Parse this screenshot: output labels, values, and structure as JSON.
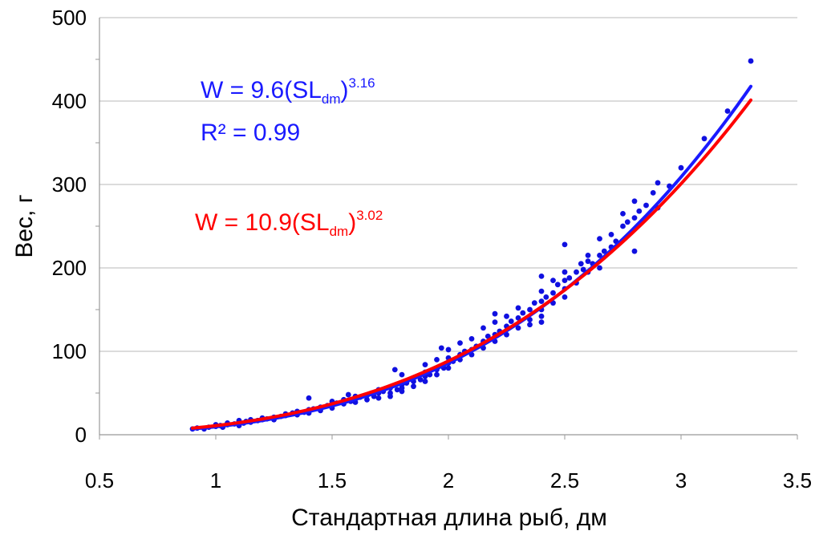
{
  "chart_data": {
    "type": "scatter",
    "xlabel": "Стандартная длина рыб, дм",
    "ylabel": "Вес, г",
    "xlim": [
      0.5,
      3.5
    ],
    "ylim": [
      0,
      500
    ],
    "x_ticks": [
      "0.5",
      "1",
      "1.5",
      "2",
      "2.5",
      "3",
      "3.5"
    ],
    "y_ticks": [
      "0",
      "100",
      "200",
      "300",
      "400",
      "500"
    ],
    "grid": "horizontal",
    "colors": {
      "points": "#1010e0",
      "blue_fit": "#1a1aff",
      "red_fit": "#ff0000"
    },
    "annotations": {
      "blue_eq": {
        "prefix": "W = 9.6(SL",
        "sub": "dm",
        "close": ")",
        "sup": "3.16"
      },
      "r2": "R² = 0.99",
      "red_eq": {
        "prefix": "W = 10.9(SL",
        "sub": "dm",
        "close": ")",
        "sup": "3.02"
      }
    },
    "fits": [
      {
        "color": "blue",
        "a": 9.6,
        "b": 3.16,
        "x_range": [
          0.9,
          3.3
        ]
      },
      {
        "color": "red",
        "a": 10.9,
        "b": 3.02,
        "x_range": [
          0.9,
          3.3
        ]
      }
    ],
    "points": [
      [
        0.9,
        7
      ],
      [
        0.92,
        8
      ],
      [
        0.95,
        7
      ],
      [
        0.97,
        9
      ],
      [
        1.0,
        10
      ],
      [
        1.0,
        12
      ],
      [
        1.02,
        11
      ],
      [
        1.03,
        9
      ],
      [
        1.05,
        12
      ],
      [
        1.05,
        14
      ],
      [
        1.08,
        13
      ],
      [
        1.1,
        11
      ],
      [
        1.1,
        15
      ],
      [
        1.1,
        17
      ],
      [
        1.12,
        14
      ],
      [
        1.13,
        16
      ],
      [
        1.15,
        15
      ],
      [
        1.15,
        18
      ],
      [
        1.18,
        17
      ],
      [
        1.2,
        18
      ],
      [
        1.2,
        20
      ],
      [
        1.22,
        19
      ],
      [
        1.25,
        21
      ],
      [
        1.25,
        18
      ],
      [
        1.28,
        22
      ],
      [
        1.3,
        23
      ],
      [
        1.3,
        25
      ],
      [
        1.33,
        26
      ],
      [
        1.35,
        24
      ],
      [
        1.35,
        28
      ],
      [
        1.38,
        27
      ],
      [
        1.4,
        30
      ],
      [
        1.4,
        26
      ],
      [
        1.4,
        44
      ],
      [
        1.42,
        31
      ],
      [
        1.45,
        33
      ],
      [
        1.45,
        29
      ],
      [
        1.48,
        35
      ],
      [
        1.5,
        36
      ],
      [
        1.5,
        40
      ],
      [
        1.5,
        32
      ],
      [
        1.52,
        38
      ],
      [
        1.55,
        42
      ],
      [
        1.55,
        37
      ],
      [
        1.57,
        48
      ],
      [
        1.58,
        40
      ],
      [
        1.6,
        43
      ],
      [
        1.6,
        46
      ],
      [
        1.6,
        39
      ],
      [
        1.62,
        45
      ],
      [
        1.65,
        47
      ],
      [
        1.65,
        42
      ],
      [
        1.67,
        50
      ],
      [
        1.68,
        46
      ],
      [
        1.7,
        50
      ],
      [
        1.7,
        54
      ],
      [
        1.7,
        44
      ],
      [
        1.72,
        52
      ],
      [
        1.75,
        56
      ],
      [
        1.75,
        50
      ],
      [
        1.75,
        46
      ],
      [
        1.77,
        78
      ],
      [
        1.78,
        54
      ],
      [
        1.8,
        60
      ],
      [
        1.8,
        56
      ],
      [
        1.8,
        52
      ],
      [
        1.8,
        72
      ],
      [
        1.82,
        62
      ],
      [
        1.85,
        64
      ],
      [
        1.85,
        58
      ],
      [
        1.87,
        70
      ],
      [
        1.88,
        66
      ],
      [
        1.9,
        70
      ],
      [
        1.9,
        64
      ],
      [
        1.9,
        75
      ],
      [
        1.9,
        84
      ],
      [
        1.92,
        72
      ],
      [
        1.95,
        78
      ],
      [
        1.95,
        72
      ],
      [
        1.95,
        90
      ],
      [
        1.97,
        104
      ],
      [
        1.98,
        80
      ],
      [
        2.0,
        86
      ],
      [
        2.0,
        80
      ],
      [
        2.0,
        92
      ],
      [
        2.0,
        102
      ],
      [
        2.02,
        88
      ],
      [
        2.05,
        96
      ],
      [
        2.05,
        90
      ],
      [
        2.05,
        110
      ],
      [
        2.07,
        100
      ],
      [
        2.1,
        102
      ],
      [
        2.1,
        96
      ],
      [
        2.1,
        115
      ],
      [
        2.12,
        106
      ],
      [
        2.15,
        112
      ],
      [
        2.15,
        104
      ],
      [
        2.15,
        128
      ],
      [
        2.17,
        118
      ],
      [
        2.2,
        120
      ],
      [
        2.2,
        112
      ],
      [
        2.2,
        135
      ],
      [
        2.2,
        145
      ],
      [
        2.22,
        124
      ],
      [
        2.25,
        130
      ],
      [
        2.25,
        120
      ],
      [
        2.25,
        142
      ],
      [
        2.27,
        136
      ],
      [
        2.3,
        140
      ],
      [
        2.3,
        128
      ],
      [
        2.3,
        152
      ],
      [
        2.32,
        146
      ],
      [
        2.35,
        150
      ],
      [
        2.35,
        138
      ],
      [
        2.35,
        132
      ],
      [
        2.37,
        158
      ],
      [
        2.4,
        160
      ],
      [
        2.4,
        150
      ],
      [
        2.4,
        142
      ],
      [
        2.4,
        135
      ],
      [
        2.4,
        172
      ],
      [
        2.4,
        190
      ],
      [
        2.42,
        165
      ],
      [
        2.45,
        170
      ],
      [
        2.45,
        158
      ],
      [
        2.45,
        185
      ],
      [
        2.47,
        180
      ],
      [
        2.5,
        185
      ],
      [
        2.5,
        175
      ],
      [
        2.5,
        165
      ],
      [
        2.5,
        195
      ],
      [
        2.5,
        228
      ],
      [
        2.52,
        188
      ],
      [
        2.55,
        195
      ],
      [
        2.55,
        182
      ],
      [
        2.57,
        205
      ],
      [
        2.58,
        198
      ],
      [
        2.6,
        208
      ],
      [
        2.6,
        195
      ],
      [
        2.6,
        215
      ],
      [
        2.62,
        205
      ],
      [
        2.65,
        215
      ],
      [
        2.65,
        235
      ],
      [
        2.65,
        200
      ],
      [
        2.67,
        220
      ],
      [
        2.7,
        225
      ],
      [
        2.7,
        240
      ],
      [
        2.72,
        232
      ],
      [
        2.75,
        250
      ],
      [
        2.75,
        265
      ],
      [
        2.77,
        255
      ],
      [
        2.8,
        260
      ],
      [
        2.8,
        280
      ],
      [
        2.8,
        220
      ],
      [
        2.82,
        268
      ],
      [
        2.85,
        275
      ],
      [
        2.88,
        290
      ],
      [
        2.9,
        302
      ],
      [
        2.9,
        272
      ],
      [
        2.95,
        298
      ],
      [
        3.0,
        320
      ],
      [
        3.1,
        355
      ],
      [
        3.2,
        388
      ],
      [
        3.3,
        448
      ]
    ]
  }
}
